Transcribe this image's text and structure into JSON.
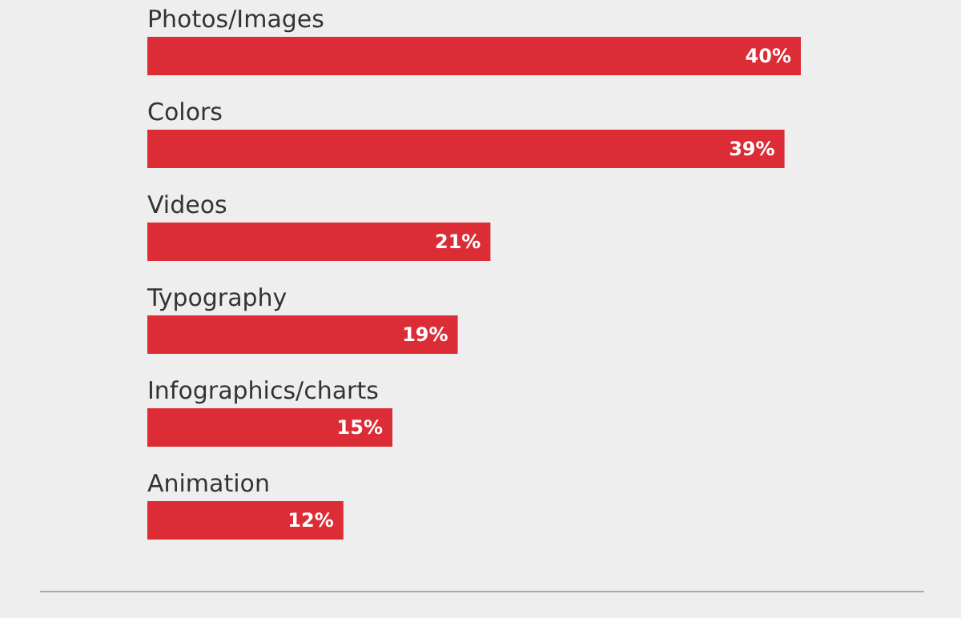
{
  "chart_data": {
    "type": "bar",
    "orientation": "horizontal",
    "categories": [
      "Photos/Images",
      "Colors",
      "Videos",
      "Typography",
      "Infographics/charts",
      "Animation"
    ],
    "values": [
      40,
      39,
      21,
      19,
      15,
      12
    ],
    "value_labels": [
      "40%",
      "39%",
      "21%",
      "19%",
      "15%",
      "12%"
    ],
    "color": "#dc2c35"
  }
}
